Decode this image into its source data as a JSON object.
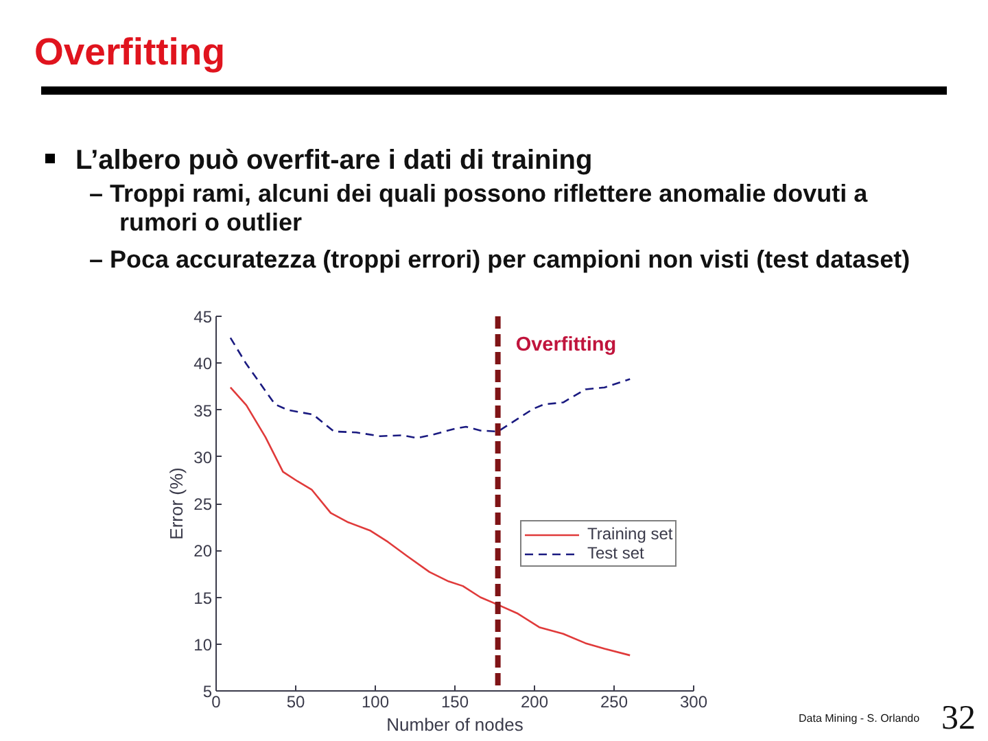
{
  "chart_data": {
    "type": "line",
    "title": "Overfitting",
    "subtitle": "L’albero può overfit-are i dati di training",
    "annotations": [
      "– Troppi rami, alcuni dei quali possono riflettere anomalie dovuti a rumori o outlier",
      "– Poca accuratezza (troppi errori) per campioni non visti (test dataset)",
      "Data Mining - S. Orlando",
      "32"
    ],
    "xlabel": "Number of nodes",
    "ylabel": "Error (%)",
    "xlim": [
      0,
      300
    ],
    "ylim": [
      5,
      45
    ],
    "xticks": [
      0,
      50,
      100,
      150,
      200,
      250,
      300
    ],
    "yticks": [
      5,
      10,
      15,
      20,
      25,
      30,
      35,
      40,
      45
    ],
    "grid": false,
    "legend": "right",
    "ref_lines": [
      {
        "axis": "x",
        "value": 177,
        "label": "Overfitting",
        "color": "#7f1416",
        "line_style": "dashed"
      }
    ],
    "series": [
      {
        "name": "Training set",
        "color": "#e03a3a",
        "line_style": "solid",
        "x": [
          9,
          19,
          31,
          42,
          51,
          60,
          72,
          83,
          97,
          108,
          120,
          134,
          146,
          155,
          166,
          177,
          189,
          203,
          218,
          232,
          244,
          260
        ],
        "values": [
          37.4,
          35.5,
          32.1,
          28.4,
          27.4,
          26.5,
          24.0,
          23.0,
          22.1,
          20.9,
          19.4,
          17.7,
          16.7,
          16.2,
          15.0,
          14.2,
          13.3,
          11.8,
          11.1,
          10.1,
          9.5,
          8.8
        ]
      },
      {
        "name": "Test set",
        "color": "#1a1a80",
        "line_style": "dashed",
        "x": [
          9,
          19,
          37,
          45,
          61,
          74,
          88,
          103,
          117,
          126,
          137,
          150,
          157,
          166,
          177,
          189,
          199,
          206,
          218,
          232,
          244,
          260
        ],
        "values": [
          42.7,
          39.9,
          35.6,
          35.0,
          34.5,
          32.7,
          32.6,
          32.2,
          32.3,
          32.0,
          32.4,
          33.0,
          33.2,
          32.8,
          32.7,
          34.0,
          35.1,
          35.6,
          35.8,
          37.2,
          37.4,
          38.3
        ]
      }
    ]
  }
}
